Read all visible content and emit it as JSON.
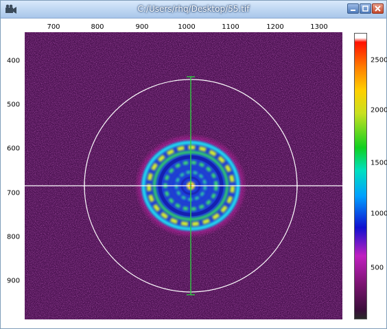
{
  "window": {
    "title": "C:/Users/rhq/Desktop/55.tif"
  },
  "icons": {
    "app": "camera-icon",
    "minimize": "minimize-icon",
    "maximize": "maximize-icon",
    "close": "close-icon"
  },
  "x_axis": {
    "ticks": [
      "700",
      "800",
      "900",
      "1000",
      "1100",
      "1200",
      "1300"
    ]
  },
  "y_axis": {
    "ticks": [
      "400",
      "500",
      "600",
      "700",
      "800",
      "900"
    ]
  },
  "colorbar": {
    "ticks": [
      "2500",
      "2000",
      "1500",
      "1000",
      "500"
    ]
  },
  "colors": {
    "background": "#4a1150",
    "crosshair_vertical": "#2ecc40",
    "crosshair_horizontal": "#ffffff",
    "circle": "#ffffff"
  },
  "image": {
    "ring_center": [
      1013,
      683
    ],
    "circle_radius": 240
  }
}
